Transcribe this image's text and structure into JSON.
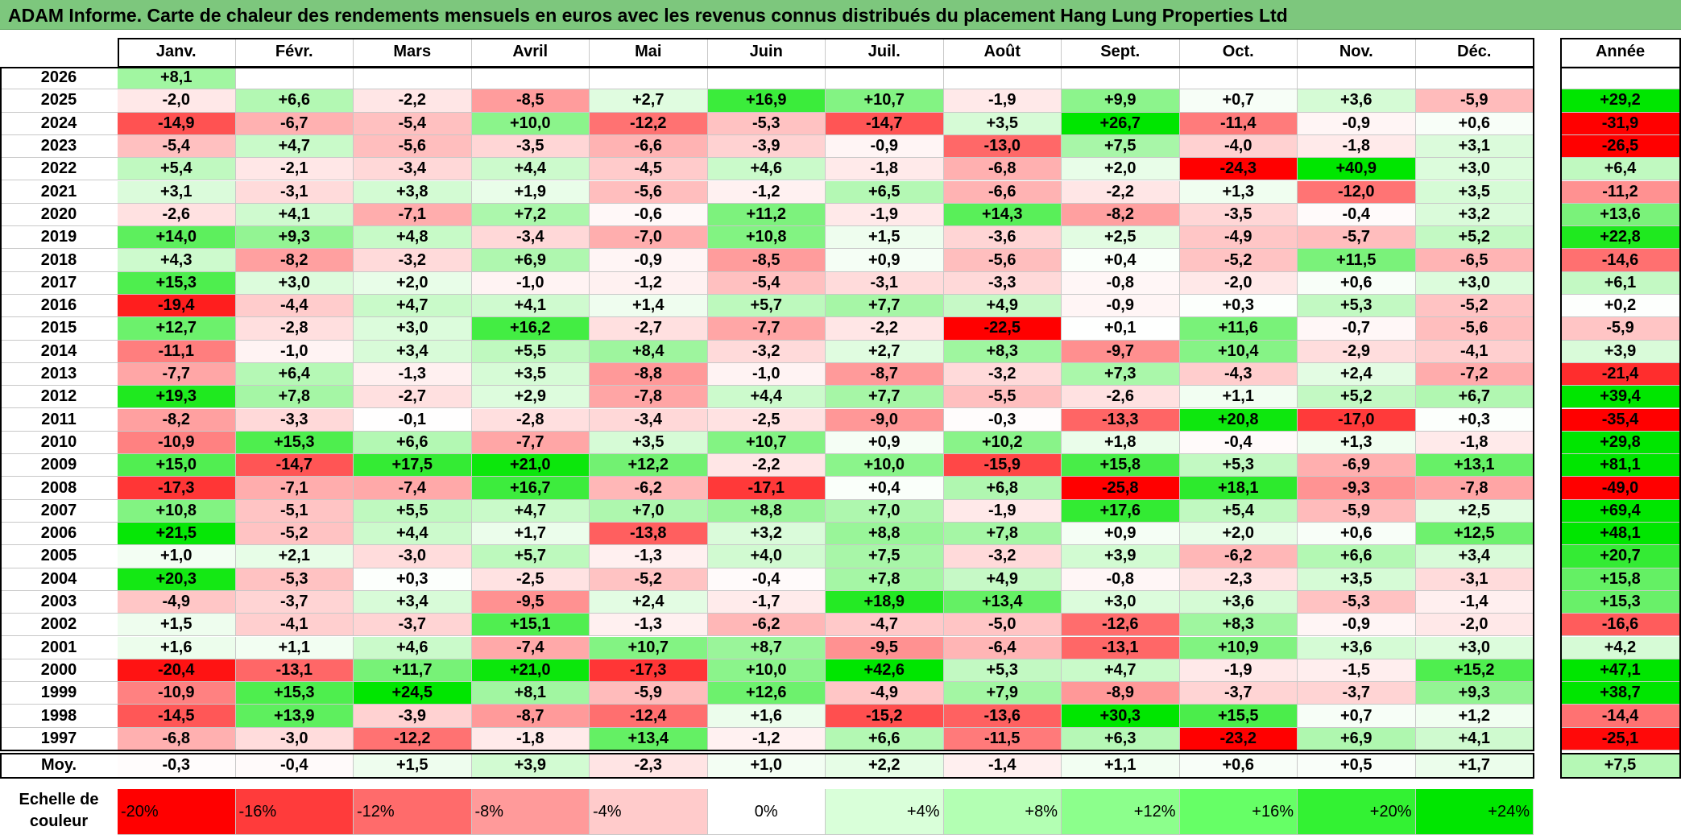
{
  "title": "ADAM Informe. Carte de chaleur des rendements mensuels en euros avec les revenus connus distribués du placement Hang Lung Properties Ltd",
  "chart_data": {
    "type": "heatmap",
    "columns": [
      "Janv.",
      "Févr.",
      "Mars",
      "Avril",
      "Mai",
      "Juin",
      "Juil.",
      "Août",
      "Sept.",
      "Oct.",
      "Nov.",
      "Déc."
    ],
    "annual_header": "Année",
    "rows": [
      {
        "year": "2026",
        "values": [
          "+8,1",
          "",
          "",
          "",
          "",
          "",
          "",
          "",
          "",
          "",
          "",
          ""
        ],
        "annual": ""
      },
      {
        "year": "2025",
        "values": [
          "-2,0",
          "+6,6",
          "-2,2",
          "-8,5",
          "+2,7",
          "+16,9",
          "+10,7",
          "-1,9",
          "+9,9",
          "+0,7",
          "+3,6",
          "-5,9"
        ],
        "annual": "+29,2"
      },
      {
        "year": "2024",
        "values": [
          "-14,9",
          "-6,7",
          "-5,4",
          "+10,0",
          "-12,2",
          "-5,3",
          "-14,7",
          "+3,5",
          "+26,7",
          "-11,4",
          "-0,9",
          "+0,6"
        ],
        "annual": "-31,9"
      },
      {
        "year": "2023",
        "values": [
          "-5,4",
          "+4,7",
          "-5,6",
          "-3,5",
          "-6,6",
          "-3,9",
          "-0,9",
          "-13,0",
          "+7,5",
          "-4,0",
          "-1,8",
          "+3,1"
        ],
        "annual": "-26,5"
      },
      {
        "year": "2022",
        "values": [
          "+5,4",
          "-2,1",
          "-3,4",
          "+4,4",
          "-4,5",
          "+4,6",
          "-1,8",
          "-6,8",
          "+2,0",
          "-24,3",
          "+40,9",
          "+3,0"
        ],
        "annual": "+6,4"
      },
      {
        "year": "2021",
        "values": [
          "+3,1",
          "-3,1",
          "+3,8",
          "+1,9",
          "-5,6",
          "-1,2",
          "+6,5",
          "-6,6",
          "-2,2",
          "+1,3",
          "-12,0",
          "+3,5"
        ],
        "annual": "-11,2"
      },
      {
        "year": "2020",
        "values": [
          "-2,6",
          "+4,1",
          "-7,1",
          "+7,2",
          "-0,6",
          "+11,2",
          "-1,9",
          "+14,3",
          "-8,2",
          "-3,5",
          "-0,4",
          "+3,2"
        ],
        "annual": "+13,6"
      },
      {
        "year": "2019",
        "values": [
          "+14,0",
          "+9,3",
          "+4,8",
          "-3,4",
          "-7,0",
          "+10,8",
          "+1,5",
          "-3,6",
          "+2,5",
          "-4,9",
          "-5,7",
          "+5,2"
        ],
        "annual": "+22,8"
      },
      {
        "year": "2018",
        "values": [
          "+4,3",
          "-8,2",
          "-3,2",
          "+6,9",
          "-0,9",
          "-8,5",
          "+0,9",
          "-5,6",
          "+0,4",
          "-5,2",
          "+11,5",
          "-6,5"
        ],
        "annual": "-14,6"
      },
      {
        "year": "2017",
        "values": [
          "+15,3",
          "+3,0",
          "+2,0",
          "-1,0",
          "-1,2",
          "-5,4",
          "-3,1",
          "-3,3",
          "-0,8",
          "-2,0",
          "+0,6",
          "+3,0"
        ],
        "annual": "+6,1"
      },
      {
        "year": "2016",
        "values": [
          "-19,4",
          "-4,4",
          "+4,7",
          "+4,1",
          "+1,4",
          "+5,7",
          "+7,7",
          "+4,9",
          "-0,9",
          "+0,3",
          "+5,3",
          "-5,2"
        ],
        "annual": "+0,2"
      },
      {
        "year": "2015",
        "values": [
          "+12,7",
          "-2,8",
          "+3,0",
          "+16,2",
          "-2,7",
          "-7,7",
          "-2,2",
          "-22,5",
          "+0,1",
          "+11,6",
          "-0,7",
          "-5,6"
        ],
        "annual": "-5,9"
      },
      {
        "year": "2014",
        "values": [
          "-11,1",
          "-1,0",
          "+3,4",
          "+5,5",
          "+8,4",
          "-3,2",
          "+2,7",
          "+8,3",
          "-9,7",
          "+10,4",
          "-2,9",
          "-4,1"
        ],
        "annual": "+3,9"
      },
      {
        "year": "2013",
        "values": [
          "-7,7",
          "+6,4",
          "-1,3",
          "+3,5",
          "-8,8",
          "-1,0",
          "-8,7",
          "-3,2",
          "+7,3",
          "-4,3",
          "+2,4",
          "-7,2"
        ],
        "annual": "-21,4"
      },
      {
        "year": "2012",
        "values": [
          "+19,3",
          "+7,8",
          "-2,7",
          "+2,9",
          "-7,8",
          "+4,4",
          "+7,7",
          "-5,5",
          "-2,6",
          "+1,1",
          "+5,2",
          "+6,7"
        ],
        "annual": "+39,4"
      },
      {
        "year": "2011",
        "values": [
          "-8,2",
          "-3,3",
          "-0,1",
          "-2,8",
          "-3,4",
          "-2,5",
          "-9,0",
          "-0,3",
          "-13,3",
          "+20,8",
          "-17,0",
          "+0,3"
        ],
        "annual": "-35,4"
      },
      {
        "year": "2010",
        "values": [
          "-10,9",
          "+15,3",
          "+6,6",
          "-7,7",
          "+3,5",
          "+10,7",
          "+0,9",
          "+10,2",
          "+1,8",
          "-0,4",
          "+1,3",
          "-1,8"
        ],
        "annual": "+29,8"
      },
      {
        "year": "2009",
        "values": [
          "+15,0",
          "-14,7",
          "+17,5",
          "+21,0",
          "+12,2",
          "-2,2",
          "+10,0",
          "-15,9",
          "+15,8",
          "+5,3",
          "-6,9",
          "+13,1"
        ],
        "annual": "+81,1"
      },
      {
        "year": "2008",
        "values": [
          "-17,3",
          "-7,1",
          "-7,4",
          "+16,7",
          "-6,2",
          "-17,1",
          "+0,4",
          "+6,8",
          "-25,8",
          "+18,1",
          "-9,3",
          "-7,8"
        ],
        "annual": "-49,0"
      },
      {
        "year": "2007",
        "values": [
          "+10,8",
          "-5,1",
          "+5,5",
          "+4,7",
          "+7,0",
          "+8,8",
          "+7,0",
          "-1,9",
          "+17,6",
          "+5,4",
          "-5,9",
          "+2,5"
        ],
        "annual": "+69,4"
      },
      {
        "year": "2006",
        "values": [
          "+21,5",
          "-5,2",
          "+4,4",
          "+1,7",
          "-13,8",
          "+3,2",
          "+8,8",
          "+7,8",
          "+0,9",
          "+2,0",
          "+0,6",
          "+12,5"
        ],
        "annual": "+48,1"
      },
      {
        "year": "2005",
        "values": [
          "+1,0",
          "+2,1",
          "-3,0",
          "+5,7",
          "-1,3",
          "+4,0",
          "+7,5",
          "-3,2",
          "+3,9",
          "-6,2",
          "+6,6",
          "+3,4"
        ],
        "annual": "+20,7"
      },
      {
        "year": "2004",
        "values": [
          "+20,3",
          "-5,3",
          "+0,3",
          "-2,5",
          "-5,2",
          "-0,4",
          "+7,8",
          "+4,9",
          "-0,8",
          "-2,3",
          "+3,5",
          "-3,1"
        ],
        "annual": "+15,8"
      },
      {
        "year": "2003",
        "values": [
          "-4,9",
          "-3,7",
          "+3,4",
          "-9,5",
          "+2,4",
          "-1,7",
          "+18,9",
          "+13,4",
          "+3,0",
          "+3,6",
          "-5,3",
          "-1,4"
        ],
        "annual": "+15,3"
      },
      {
        "year": "2002",
        "values": [
          "+1,5",
          "-4,1",
          "-3,7",
          "+15,1",
          "-1,3",
          "-6,2",
          "-4,7",
          "-5,0",
          "-12,6",
          "+8,3",
          "-0,9",
          "-2,0"
        ],
        "annual": "-16,6"
      },
      {
        "year": "2001",
        "values": [
          "+1,6",
          "+1,1",
          "+4,6",
          "-7,4",
          "+10,7",
          "+8,7",
          "-9,5",
          "-6,4",
          "-13,1",
          "+10,9",
          "+3,6",
          "+3,0"
        ],
        "annual": "+4,2"
      },
      {
        "year": "2000",
        "values": [
          "-20,4",
          "-13,1",
          "+11,7",
          "+21,0",
          "-17,3",
          "+10,0",
          "+42,6",
          "+5,3",
          "+4,7",
          "-1,9",
          "-1,5",
          "+15,2"
        ],
        "annual": "+47,1"
      },
      {
        "year": "1999",
        "values": [
          "-10,9",
          "+15,3",
          "+24,5",
          "+8,1",
          "-5,9",
          "+12,6",
          "-4,9",
          "+7,9",
          "-8,9",
          "-3,7",
          "-3,7",
          "+9,3"
        ],
        "annual": "+38,7"
      },
      {
        "year": "1998",
        "values": [
          "-14,5",
          "+13,9",
          "-3,9",
          "-8,7",
          "-12,4",
          "+1,6",
          "-15,2",
          "-13,6",
          "+30,3",
          "+15,5",
          "+0,7",
          "+1,2"
        ],
        "annual": "-14,4"
      },
      {
        "year": "1997",
        "values": [
          "-6,8",
          "-3,0",
          "-12,2",
          "-1,8",
          "+13,4",
          "-1,2",
          "+6,6",
          "-11,5",
          "+6,3",
          "-23,2",
          "+6,9",
          "+4,1"
        ],
        "annual": "-25,1"
      }
    ],
    "average": {
      "label": "Moy.",
      "values": [
        "-0,3",
        "-0,4",
        "+1,5",
        "+3,9",
        "-2,3",
        "+1,0",
        "+2,2",
        "-1,4",
        "+1,1",
        "+0,6",
        "+0,5",
        "+1,7"
      ],
      "annual": "+7,5"
    },
    "scale": {
      "label": "Echelle de couleur",
      "steps": [
        "-20%",
        "-16%",
        "-12%",
        "-8%",
        "-4%",
        "0%",
        "+4%",
        "+8%",
        "+12%",
        "+16%",
        "+20%",
        "+24%"
      ],
      "colors": [
        "#ff0000",
        "#ff3b3b",
        "#ff6b6b",
        "#ff9a9a",
        "#ffcbcb",
        "#ffffff",
        "#d9ffd9",
        "#b3ffb3",
        "#8cff8c",
        "#66ff66",
        "#33f233",
        "#00e600"
      ]
    }
  }
}
